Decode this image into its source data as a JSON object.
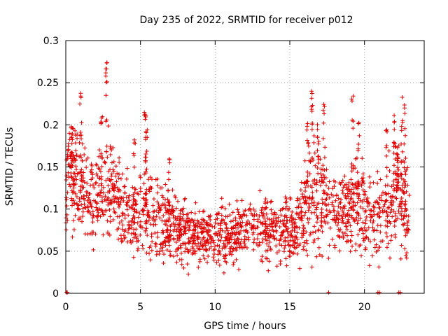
{
  "chart_data": {
    "type": "scatter",
    "title": "Day 235 of 2022, SRMTID for receiver p012",
    "xlabel": "GPS time / hours",
    "ylabel": "SRMTID / TECUs",
    "xlim": [
      0,
      24
    ],
    "ylim": [
      0,
      0.3
    ],
    "xticks": [
      0,
      5,
      10,
      15,
      20
    ],
    "xtick_labels": [
      "0",
      "5",
      "10",
      "15",
      "20"
    ],
    "yticks": [
      0,
      0.05,
      0.1,
      0.15,
      0.2,
      0.25,
      0.3
    ],
    "ytick_labels": [
      "0",
      "0.05",
      "0.1",
      "0.15",
      "0.2",
      "0.25",
      "0.3"
    ],
    "grid": true,
    "marker": "plus",
    "color": "#e00000",
    "series": [
      {
        "name": "SRMTID",
        "envelope": [
          [
            0,
            0.12,
            0.04
          ],
          [
            0.5,
            0.14,
            0.04
          ],
          [
            1,
            0.12,
            0.035
          ],
          [
            1.5,
            0.12,
            0.035
          ],
          [
            2,
            0.11,
            0.035
          ],
          [
            2.5,
            0.12,
            0.04
          ],
          [
            3,
            0.13,
            0.045
          ],
          [
            3.5,
            0.11,
            0.035
          ],
          [
            4,
            0.1,
            0.03
          ],
          [
            4.5,
            0.09,
            0.03
          ],
          [
            5,
            0.095,
            0.03
          ],
          [
            5.5,
            0.1,
            0.035
          ],
          [
            6,
            0.085,
            0.03
          ],
          [
            6.5,
            0.08,
            0.03
          ],
          [
            7,
            0.085,
            0.03
          ],
          [
            7.5,
            0.08,
            0.025
          ],
          [
            8,
            0.075,
            0.025
          ],
          [
            8.5,
            0.072,
            0.022
          ],
          [
            9,
            0.07,
            0.022
          ],
          [
            9.5,
            0.07,
            0.022
          ],
          [
            10,
            0.068,
            0.022
          ],
          [
            10.5,
            0.068,
            0.022
          ],
          [
            11,
            0.07,
            0.022
          ],
          [
            11.5,
            0.072,
            0.022
          ],
          [
            12,
            0.075,
            0.025
          ],
          [
            12.5,
            0.078,
            0.025
          ],
          [
            13,
            0.078,
            0.025
          ],
          [
            13.5,
            0.075,
            0.025
          ],
          [
            14,
            0.078,
            0.025
          ],
          [
            14.5,
            0.075,
            0.025
          ],
          [
            15,
            0.075,
            0.025
          ],
          [
            15.5,
            0.075,
            0.025
          ],
          [
            16,
            0.1,
            0.04
          ],
          [
            16.5,
            0.12,
            0.045
          ],
          [
            17,
            0.11,
            0.04
          ],
          [
            17.5,
            0.1,
            0.035
          ],
          [
            18,
            0.095,
            0.03
          ],
          [
            18.5,
            0.09,
            0.03
          ],
          [
            19,
            0.1,
            0.035
          ],
          [
            19.5,
            0.11,
            0.04
          ],
          [
            20,
            0.095,
            0.035
          ],
          [
            20.5,
            0.09,
            0.035
          ],
          [
            21,
            0.09,
            0.035
          ],
          [
            21.5,
            0.095,
            0.035
          ],
          [
            22,
            0.12,
            0.045
          ],
          [
            22.5,
            0.11,
            0.04
          ],
          [
            23,
            0.085,
            0.03
          ]
        ],
        "spikes": [
          [
            0.2,
            0.19
          ],
          [
            0.4,
            0.2
          ],
          [
            1.0,
            0.245
          ],
          [
            2.4,
            0.21
          ],
          [
            2.7,
            0.275
          ],
          [
            4.6,
            0.185
          ],
          [
            5.3,
            0.225
          ],
          [
            5.4,
            0.205
          ],
          [
            6.9,
            0.17
          ],
          [
            16.2,
            0.205
          ],
          [
            16.5,
            0.24
          ],
          [
            16.9,
            0.21
          ],
          [
            17.3,
            0.235
          ],
          [
            19.2,
            0.245
          ],
          [
            19.6,
            0.21
          ],
          [
            21.5,
            0.195
          ],
          [
            22.0,
            0.215
          ],
          [
            22.2,
            0.18
          ],
          [
            22.5,
            0.245
          ],
          [
            22.7,
            0.23
          ]
        ],
        "zero_points": [
          0.05,
          0.1,
          17.6,
          20.9,
          21.0,
          22.3,
          22.4
        ]
      }
    ]
  }
}
